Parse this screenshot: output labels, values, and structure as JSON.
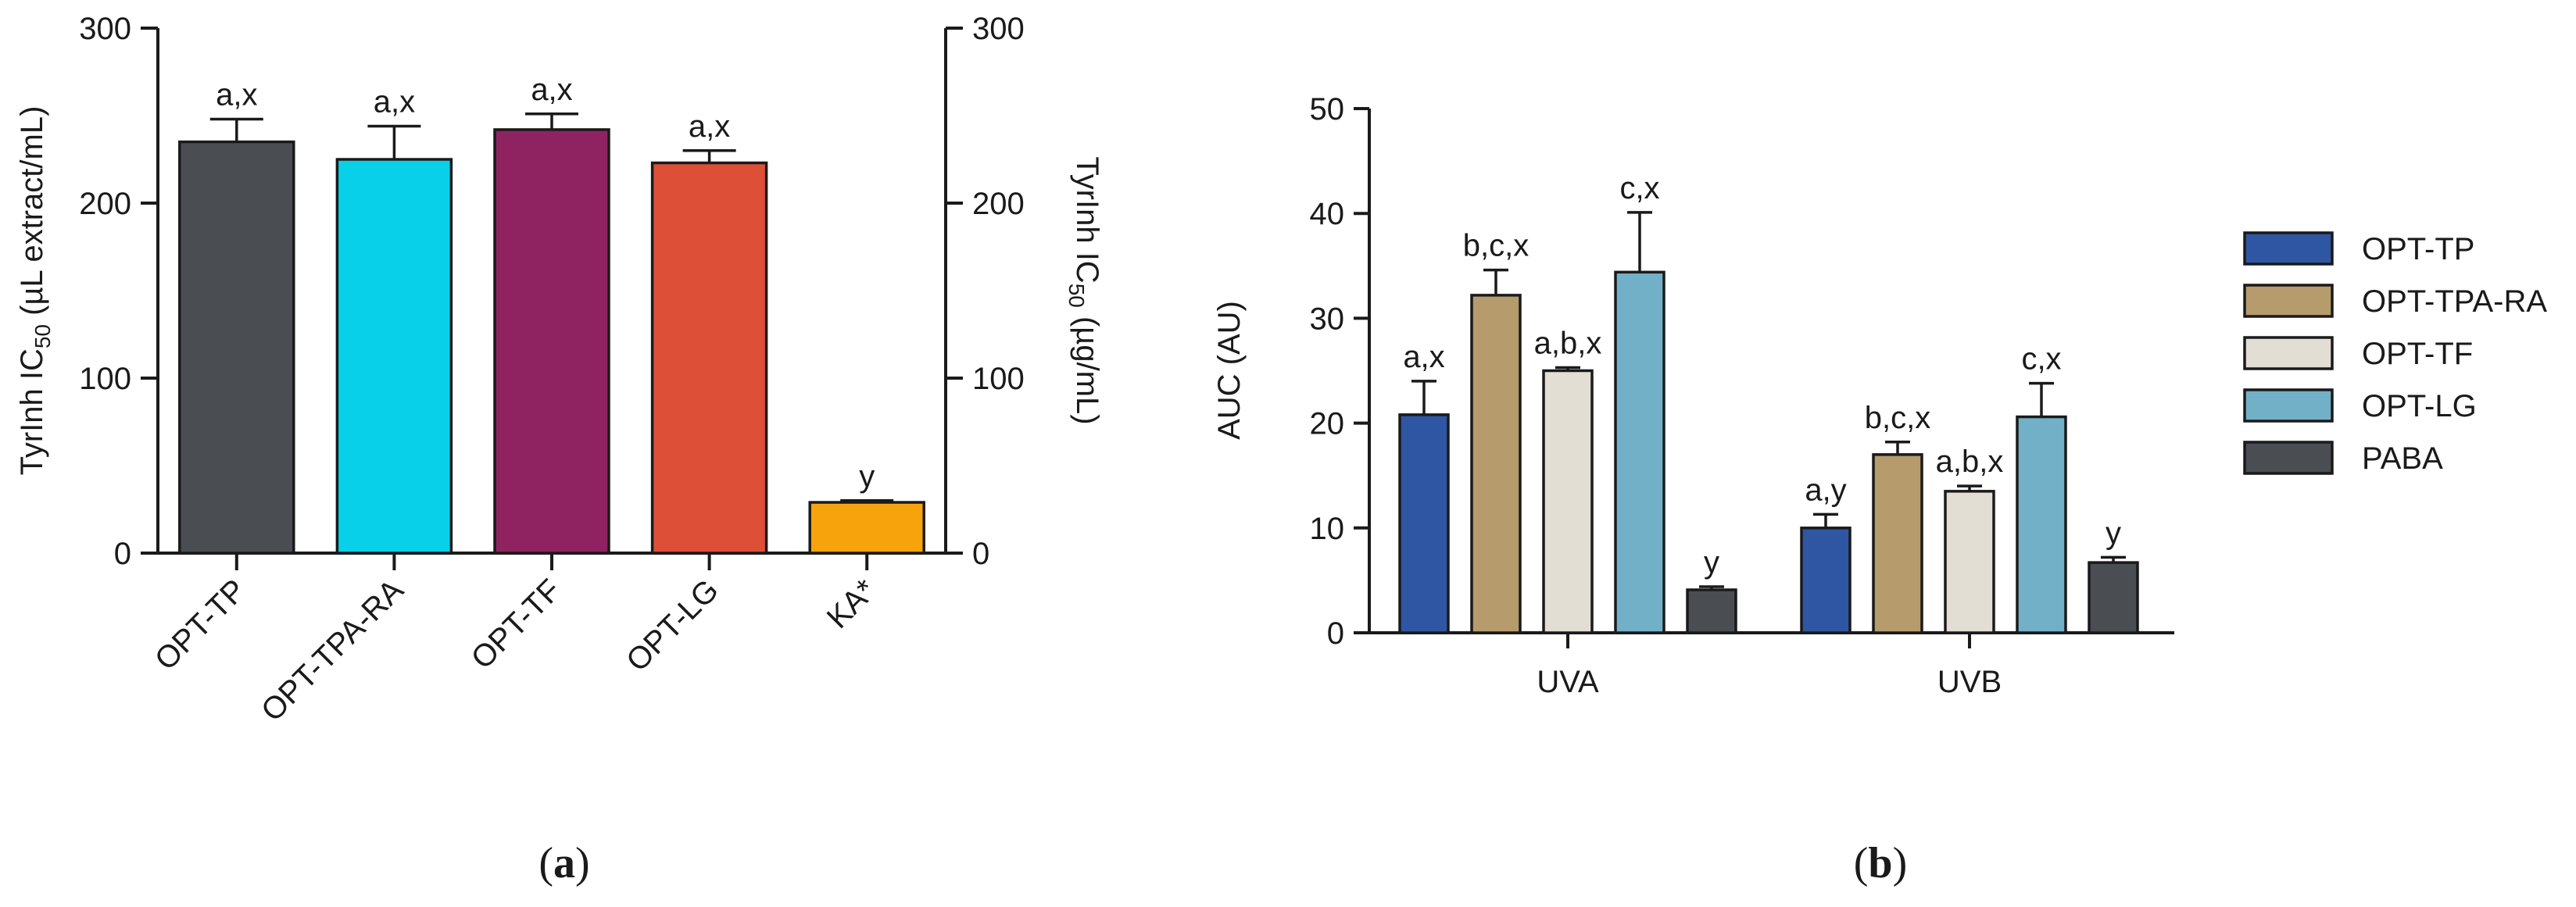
{
  "panel_a": {
    "label_open": "(",
    "label_letter": "a",
    "label_close": ")",
    "left_ylabel_pre": "TyrInh IC",
    "left_ylabel_sub": "50",
    "left_ylabel_post": " (µL extract/mL)",
    "right_ylabel_pre": "TyrInh IC",
    "right_ylabel_sub": "50",
    "right_ylabel_post": " (µg/mL)"
  },
  "panel_b": {
    "label_open": "(",
    "label_letter": "b",
    "label_close": ")"
  },
  "chart_data": [
    {
      "type": "bar",
      "title": "",
      "xlabel": "",
      "ylabel": "TyrInh IC50 (µL extract/mL)",
      "y2label": "TyrInh IC50 (µg/mL)",
      "categories": [
        "OPT-TP",
        "OPT-TPA-RA",
        "OPT-TF",
        "OPT-LG",
        "KA*"
      ],
      "values": [
        235,
        225,
        242,
        223,
        29
      ],
      "errors": [
        13,
        19,
        9,
        7,
        1
      ],
      "labels": [
        "a,x",
        "a,x",
        "a,x",
        "a,x",
        "y"
      ],
      "colors": [
        "#4a4d52",
        "#08d0e8",
        "#8f2362",
        "#de4f38",
        "#f7a40c"
      ],
      "ylim": [
        0,
        300
      ],
      "yticks": [
        0,
        100,
        200,
        300
      ],
      "y2lim": [
        0,
        300
      ],
      "y2ticks": [
        0,
        100,
        200,
        300
      ]
    },
    {
      "type": "bar",
      "title": "",
      "xlabel": "",
      "ylabel": "AUC (AU)",
      "categories": [
        "UVA",
        "UVB"
      ],
      "series": [
        {
          "name": "OPT-TP",
          "color": "#2e56a3",
          "values": [
            20.8,
            10.0
          ],
          "errors": [
            3.2,
            1.3
          ],
          "labels": [
            "a,x",
            "a,y"
          ]
        },
        {
          "name": "OPT-TPA-RA",
          "color": "#b69b6d",
          "values": [
            32.2,
            17.0
          ],
          "errors": [
            2.4,
            1.2
          ],
          "labels": [
            "b,c,x",
            "b,c,x"
          ]
        },
        {
          "name": "OPT-TF",
          "color": "#e2ded4",
          "values": [
            25.0,
            13.5
          ],
          "errors": [
            0.3,
            0.5
          ],
          "labels": [
            "a,b,x",
            "a,b,x"
          ]
        },
        {
          "name": "OPT-LG",
          "color": "#72b0c8",
          "values": [
            34.4,
            20.6
          ],
          "errors": [
            5.7,
            3.2
          ],
          "labels": [
            "c,x",
            "c,x"
          ]
        },
        {
          "name": "PABA",
          "color": "#4a4d52",
          "values": [
            4.1,
            6.7
          ],
          "errors": [
            0.3,
            0.5
          ],
          "labels": [
            "y",
            "y"
          ]
        }
      ],
      "ylim": [
        0,
        50
      ],
      "yticks": [
        0,
        10,
        20,
        30,
        40,
        50
      ],
      "legend_position": "right"
    }
  ]
}
